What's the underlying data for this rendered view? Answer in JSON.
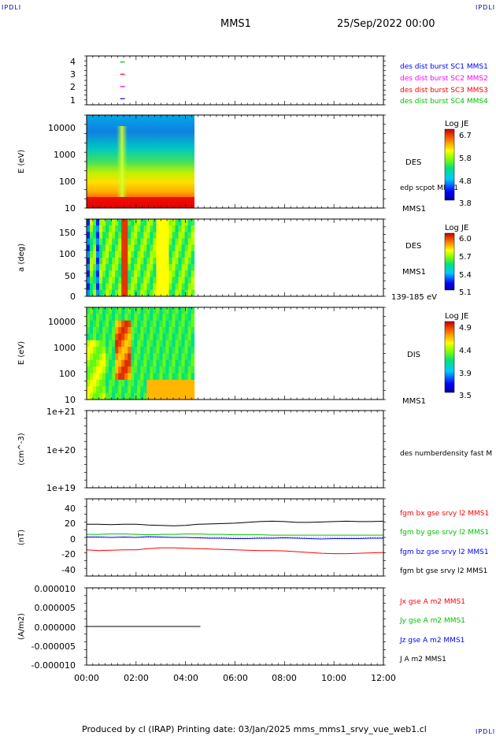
{
  "header": {
    "corner_label": "IPDLI",
    "spacecraft": "MMS1",
    "date": "25/Sep/2022 00:00"
  },
  "footer": {
    "text": "Produced by cl (IRAP)   Printing date: 03/Jan/2025   mms_mms1_srvy_vue_web1.cl"
  },
  "time_axis": {
    "labels": [
      "00:00",
      "02:00",
      "04:00",
      "06:00",
      "08:00",
      "10:00",
      "12:00"
    ],
    "range_hours": [
      0,
      12
    ]
  },
  "colors": {
    "blue": "#0000ff",
    "magenta": "#ff00ff",
    "red": "#ff0000",
    "green": "#00c000",
    "black": "#000000"
  },
  "panels": {
    "sc_flags": {
      "ticks": [
        "4",
        "3",
        "2",
        "1"
      ],
      "legend": [
        {
          "text": "des dist burst SC1 MMS1",
          "color": "#0000ff"
        },
        {
          "text": "des dist burst SC2 MMS2",
          "color": "#ff00ff"
        },
        {
          "text": "des dist burst SC3 MMS3",
          "color": "#ff0000"
        },
        {
          "text": "des dist burst SC4 MMS4",
          "color": "#00c000"
        }
      ]
    },
    "des_energy": {
      "ylabel": "E (eV)",
      "ticks": [
        "10000",
        "1000",
        "100",
        "10"
      ],
      "instrument": "DES",
      "extra": "edp scpot MMS1",
      "sc": "MMS1",
      "colorbar": {
        "title": "Log JE",
        "ticks": [
          "6.7",
          "5.8",
          "4.8",
          "3.8"
        ]
      }
    },
    "des_pitch": {
      "ylabel": "a (deg)",
      "ticks": [
        "150",
        "100",
        "50",
        "0"
      ],
      "instrument": "DES",
      "sc": "MMS1",
      "energy_range": "139-185 eV",
      "colorbar": {
        "title": "Log JE",
        "ticks": [
          "6.0",
          "5.7",
          "5.4",
          "5.1"
        ]
      }
    },
    "dis_energy": {
      "ylabel": "E (eV)",
      "ticks": [
        "10000",
        "1000",
        "100",
        "10"
      ],
      "instrument": "DIS",
      "sc": "MMS1",
      "colorbar": {
        "title": "Log JE",
        "ticks": [
          "4.9",
          "4.4",
          "3.9",
          "3.5"
        ]
      }
    },
    "density": {
      "ylabel": "(cm^-3)",
      "ticks": [
        "1e+21",
        "1e+20",
        "1e+19"
      ],
      "legend": "des numberdensity fast M"
    },
    "bfield": {
      "ylabel": "(nT)",
      "ticks": [
        "40",
        "20",
        "0",
        "-20",
        "-40"
      ],
      "legend": [
        {
          "text": "fgm bx gse srvy l2 MMS1",
          "color": "#ff0000"
        },
        {
          "text": "fgm by gse srvy l2 MMS1",
          "color": "#00c000"
        },
        {
          "text": "fgm bz gse srvy l2 MMS1",
          "color": "#0000ff"
        },
        {
          "text": "fgm bt gse srvy l2 MMS1",
          "color": "#000000"
        }
      ]
    },
    "current": {
      "ylabel": "(A/m2)",
      "ticks": [
        "0.000010",
        "0.000005",
        "0.000000",
        "-0.000005",
        "-0.000010"
      ],
      "legend": [
        {
          "text": "Jx gse A m2 MMS1",
          "color": "#ff0000"
        },
        {
          "text": "Jy gse A m2 MMS1",
          "color": "#00c000"
        },
        {
          "text": "Jz gse A m2 MMS1",
          "color": "#0000ff"
        },
        {
          "text": "J A m2 MMS1",
          "color": "#000000"
        }
      ]
    }
  },
  "chart_data": [
    {
      "type": "scatter",
      "name_ref": "sc_flags",
      "ylim": [
        0.5,
        4.5
      ],
      "series": [
        {
          "color": "#0000ff",
          "points": [
            [
              1.45,
              1
            ]
          ]
        },
        {
          "color": "#ff00ff",
          "points": [
            [
              1.45,
              2
            ]
          ]
        },
        {
          "color": "#ff0000",
          "points": [
            [
              1.45,
              3
            ]
          ]
        },
        {
          "color": "#00c000",
          "points": [
            [
              1.45,
              4
            ]
          ]
        }
      ],
      "xlim": [
        0,
        12
      ]
    },
    {
      "type": "heatmap",
      "name_ref": "des_energy",
      "xlim": [
        0,
        4.35
      ],
      "ylim_eV": [
        10,
        30000
      ],
      "ylog": true,
      "crange": [
        3.8,
        6.7
      ]
    },
    {
      "type": "heatmap",
      "name_ref": "des_pitch",
      "xlim": [
        0,
        4.35
      ],
      "ylim": [
        0,
        180
      ],
      "crange": [
        5.1,
        6.0
      ]
    },
    {
      "type": "heatmap",
      "name_ref": "dis_energy",
      "xlim": [
        0,
        4.35
      ],
      "ylim_eV": [
        10,
        30000
      ],
      "ylog": true,
      "crange": [
        3.5,
        4.9
      ]
    },
    {
      "type": "line",
      "name_ref": "bfield",
      "ylim": [
        -50,
        50
      ],
      "x": [
        0,
        0.5,
        1,
        1.5,
        2,
        2.5,
        3,
        3.5,
        4,
        4.5,
        5,
        5.5,
        6,
        6.5,
        7,
        7.5,
        8,
        8.5,
        9,
        9.5,
        10,
        10.5,
        11,
        11.5,
        12
      ],
      "series": [
        {
          "name": "fgm bt gse srvy l2 MMS1",
          "color": "#000000",
          "values": [
            17,
            17,
            16.5,
            17,
            17,
            16,
            15.5,
            15,
            15.5,
            17,
            17.5,
            18,
            18.5,
            19.5,
            20.5,
            21,
            20.5,
            19.5,
            19.5,
            20,
            20.5,
            21,
            20.5,
            20.5,
            21
          ]
        },
        {
          "name": "fgm by gse srvy l2 MMS1",
          "color": "#00c000",
          "values": [
            4,
            4,
            4.5,
            4.5,
            4,
            3.5,
            4,
            4,
            4.5,
            4.5,
            4,
            4,
            3.5,
            3.5,
            3.5,
            3,
            3,
            3,
            3,
            3,
            3,
            3,
            3,
            3,
            3
          ]
        },
        {
          "name": "fgm bz gse srvy l2 MMS1",
          "color": "#0000ff",
          "values": [
            0.5,
            0.5,
            0,
            0.5,
            0,
            1,
            0.5,
            0,
            0,
            -0.5,
            -1,
            -1,
            -1.5,
            -1.5,
            -1,
            -1,
            -0.5,
            -1,
            -1.5,
            -2,
            -1.5,
            -1.5,
            -1.5,
            -1,
            -1
          ]
        },
        {
          "name": "fgm bx gse srvy l2 MMS1",
          "color": "#ff0000",
          "values": [
            -16,
            -17,
            -16.5,
            -16,
            -16,
            -14.5,
            -13.5,
            -13.5,
            -14,
            -14.5,
            -15,
            -15.5,
            -16,
            -16.5,
            -17,
            -17,
            -17.5,
            -18.5,
            -19.5,
            -20.5,
            -21,
            -21,
            -20.5,
            -20,
            -19.5
          ]
        }
      ]
    },
    {
      "type": "line",
      "name_ref": "current",
      "ylim": [
        -1e-05,
        1e-05
      ],
      "x": [
        0,
        4.6
      ],
      "series": [
        {
          "name": "J A m2 MMS1",
          "color": "#000000",
          "values": [
            0,
            0
          ]
        }
      ]
    }
  ]
}
